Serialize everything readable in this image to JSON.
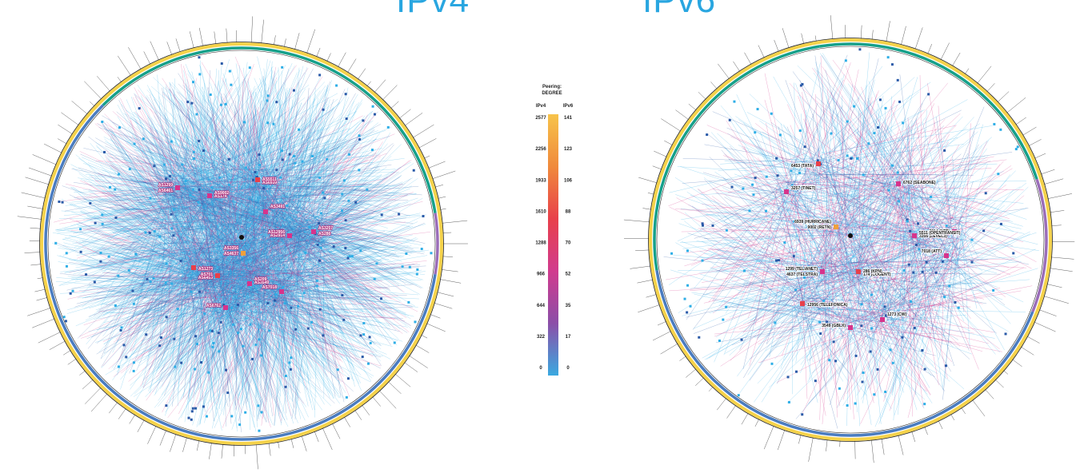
{
  "titles": {
    "left": "IPv4",
    "right": "IPv6"
  },
  "legend": {
    "heading_line1": "Peering:",
    "heading_line2": "DEGREE",
    "col_v4": "IPv4",
    "col_v6": "IPv6",
    "ticks_v4": [
      "2577",
      "2256",
      "1933",
      "1610",
      "1288",
      "966",
      "644",
      "322",
      "0"
    ],
    "ticks_v6": [
      "141",
      "123",
      "106",
      "88",
      "70",
      "52",
      "35",
      "17",
      "0"
    ],
    "gradient": [
      "#f7c34a",
      "#f08a3c",
      "#e8404a",
      "#d13b8e",
      "#8b4fa8",
      "#3aa9e0"
    ]
  },
  "colors": {
    "edge_light": "#2eaee6",
    "edge_dark": "#2a5aa8",
    "edge_magenta": "#d6348c",
    "ring_yellow": "#f5d24a",
    "ring_teal": "#16a08a",
    "ring_blue": "#4a7cc0",
    "ring_purple": "#9a6db8",
    "ring_orange": "#f0a03c"
  },
  "ipv4_labels": [
    "AS3356",
    "AS174",
    "AS1299",
    "AS6939",
    "AS2914",
    "AS3257",
    "AS6453",
    "AS3549",
    "AS7018",
    "AS1273",
    "AS6762",
    "AS3491",
    "AS4637",
    "AS9002",
    "AS6461",
    "AS5511",
    "AS12956",
    "AS286",
    "AS701",
    "AS209"
  ],
  "ipv6_labels": [
    "6939 (HURRICANE)",
    "3356 (LEVEL3)",
    "1299 (TELIANET)",
    "174 (COGENT)",
    "2914 (NTT)",
    "3257 (TINET)",
    "6453 (TATA)",
    "6762 (SEABONE)",
    "7018 (ATT)",
    "12956 (TELEFONICA)",
    "3549 (GBLX)",
    "1273 (CW)",
    "9002 (RETN)",
    "5511 (OPENTRANSIT)",
    "4637 (TELSTRA)",
    "286 (KPN)"
  ]
}
